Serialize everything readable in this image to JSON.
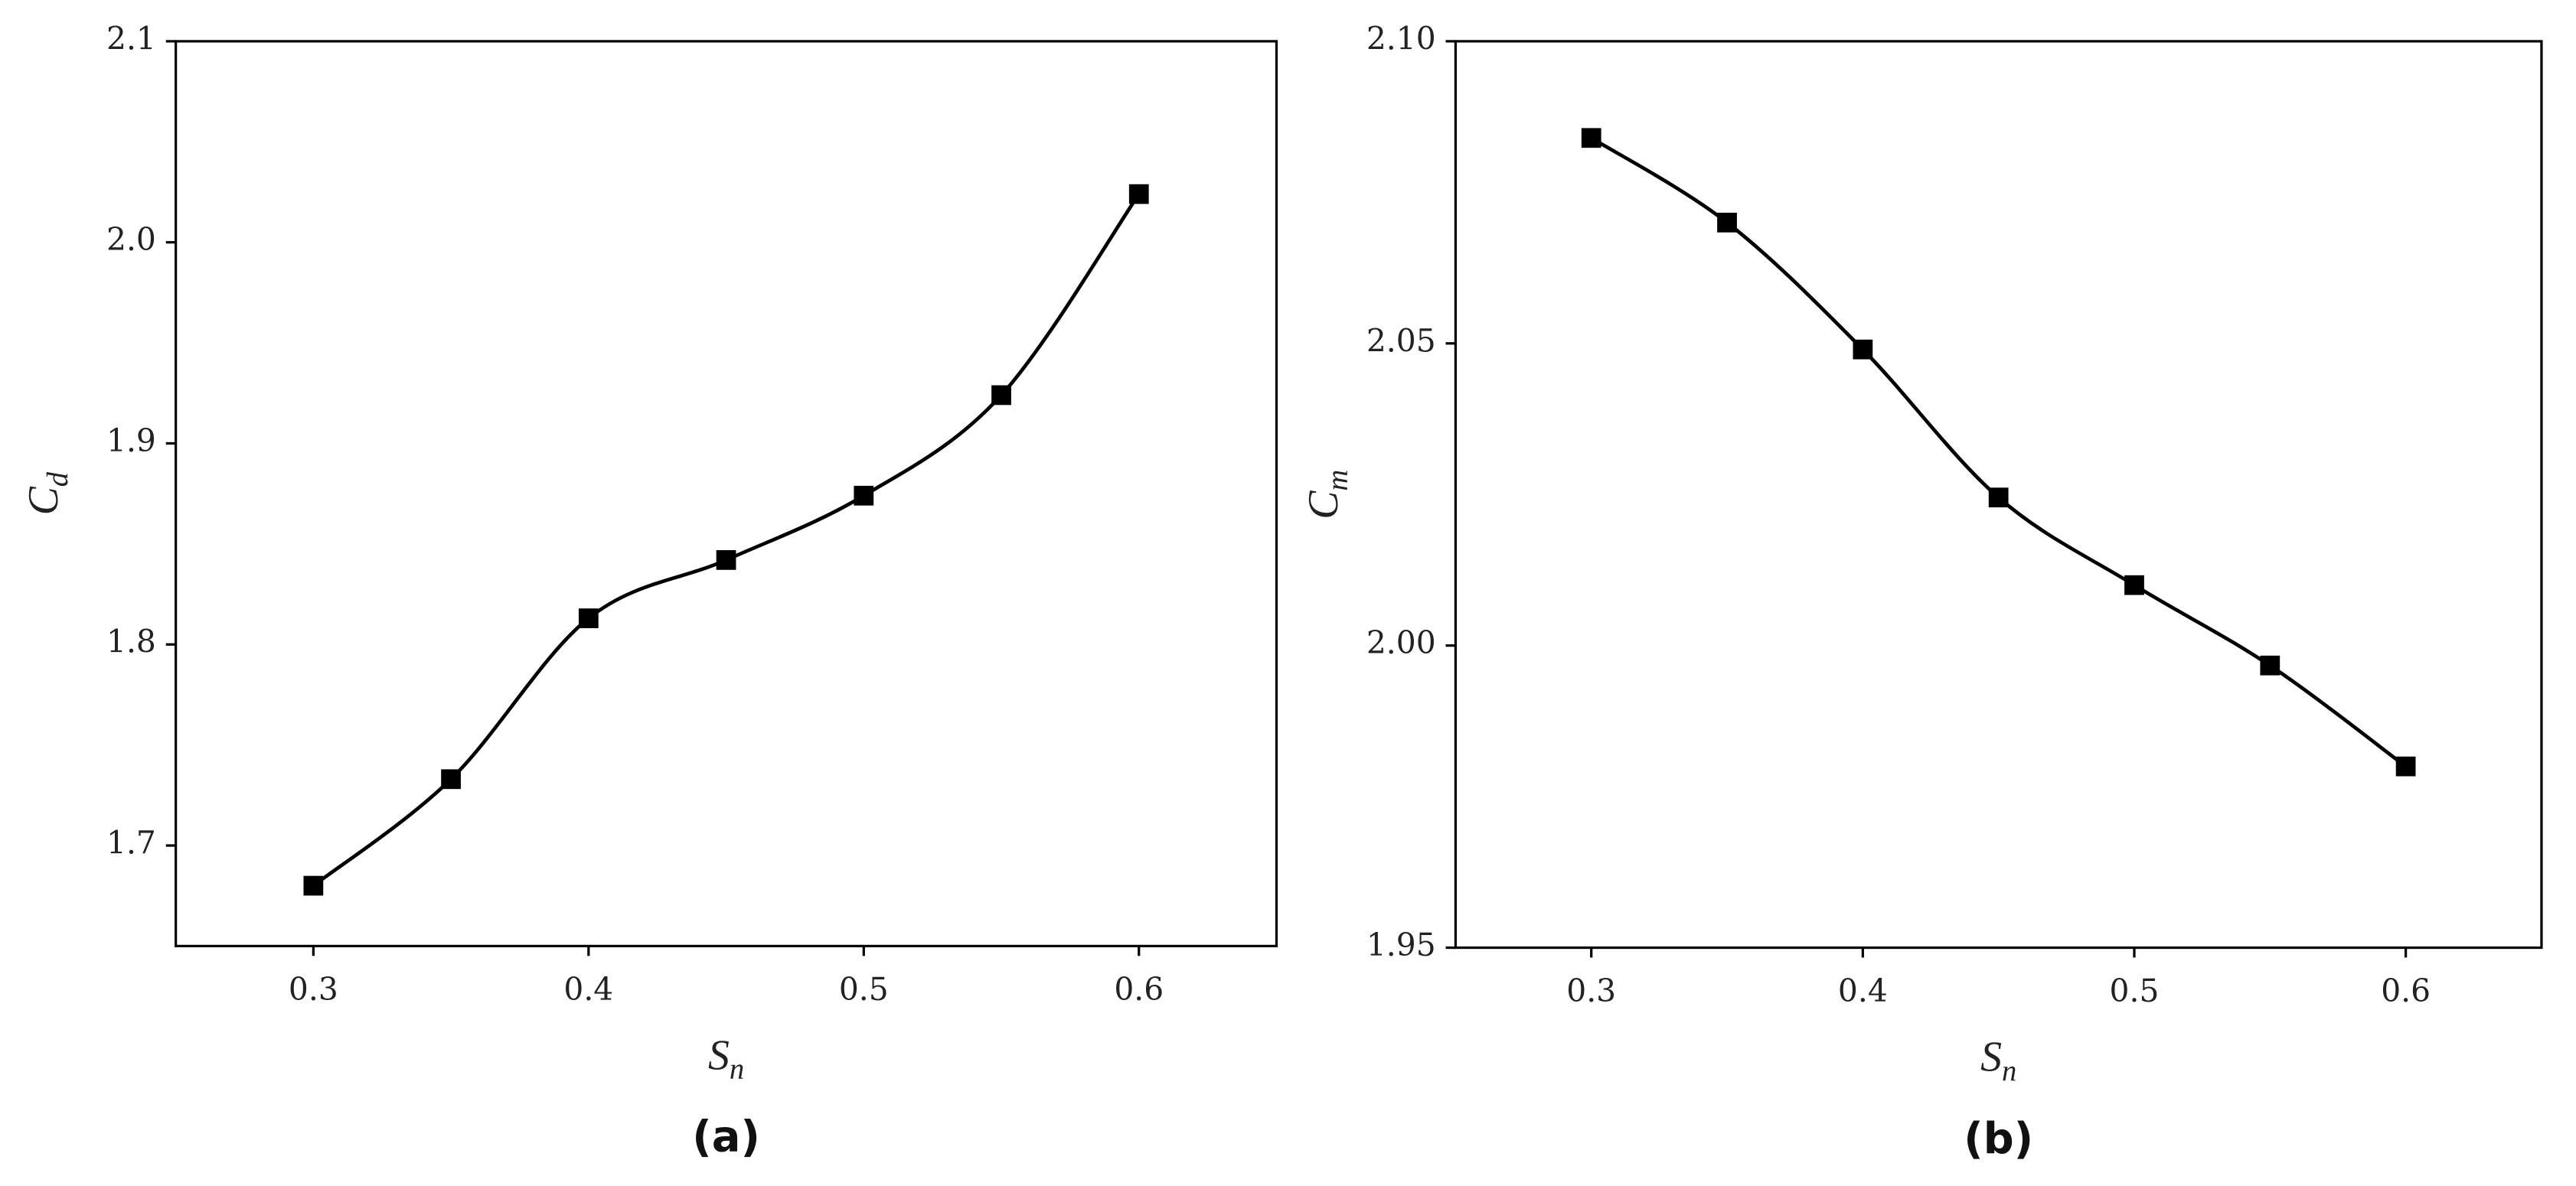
{
  "chart_data": [
    {
      "type": "line",
      "panel_label": "(a)",
      "x_label": {
        "main": "S",
        "sub": "n"
      },
      "y_label": {
        "main": "C",
        "sub": "d"
      },
      "x": [
        0.3,
        0.35,
        0.4,
        0.45,
        0.5,
        0.55,
        0.6
      ],
      "series": [
        {
          "color": "#000000",
          "values": [
            1.68,
            1.733,
            1.813,
            1.842,
            1.874,
            1.924,
            2.024
          ]
        }
      ],
      "xlim": [
        0.25,
        0.65
      ],
      "xticks": [
        0.3,
        0.4,
        0.5,
        0.6
      ],
      "ylim": [
        1.65,
        2.1
      ],
      "yticks": [
        1.7,
        1.8,
        1.9,
        {
          "value": 2.0,
          "label": "2.0"
        },
        2.1
      ]
    },
    {
      "type": "line",
      "panel_label": "(b)",
      "x_label": {
        "main": "S",
        "sub": "n"
      },
      "y_label": {
        "main": "C",
        "sub": "m"
      },
      "x": [
        0.3,
        0.35,
        0.4,
        0.45,
        0.5,
        0.55,
        0.6
      ],
      "series": [
        {
          "color": "#000000",
          "values": [
            2.084,
            2.07,
            2.049,
            2.0245,
            2.01,
            1.9967,
            1.98
          ]
        }
      ],
      "xlim": [
        0.25,
        0.65
      ],
      "xticks": [
        0.3,
        0.4,
        0.5,
        0.6
      ],
      "ylim": [
        1.95,
        2.1
      ],
      "yticks": [
        {
          "value": 1.95,
          "label": "1.95"
        },
        {
          "value": 2.0,
          "label": "2.00"
        },
        {
          "value": 2.05,
          "label": "2.05"
        },
        {
          "value": 2.1,
          "label": "2.10"
        }
      ]
    }
  ]
}
